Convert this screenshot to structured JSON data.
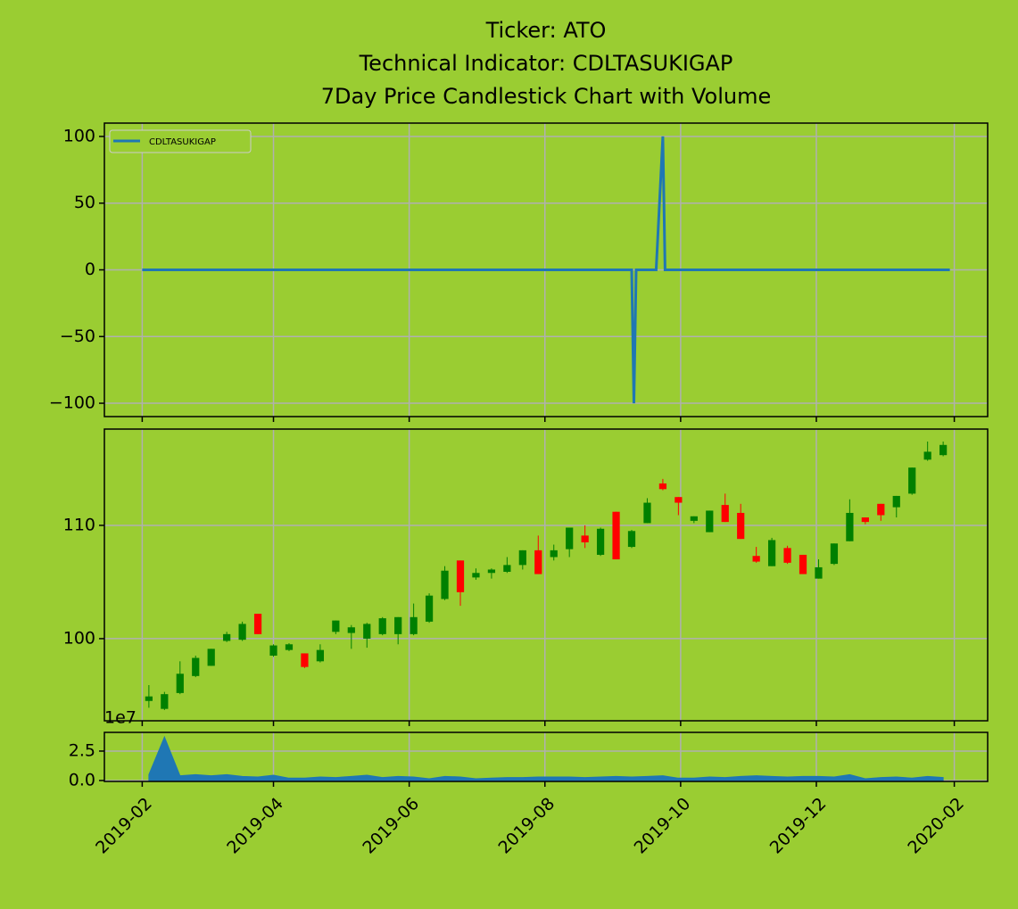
{
  "chart_data": [
    {
      "type": "line",
      "title": [
        "Ticker: ATO",
        "Technical Indicator: CDLTASUKIGAP",
        "7Day Price Candlestick Chart with Volume"
      ],
      "x": [
        "2019-02-01",
        "2019-09-09",
        "2019-09-10",
        "2019-09-11",
        "2019-09-20",
        "2019-09-23",
        "2019-09-24",
        "2020-01-30"
      ],
      "series": [
        {
          "name": "CDLTASUKIGAP",
          "color": "#1f77b4",
          "values": [
            0,
            0,
            -100,
            0,
            0,
            100,
            0,
            0
          ]
        }
      ],
      "ylim": [
        -110,
        110
      ],
      "yticks": [
        {
          "value": -100,
          "label": "−100"
        },
        {
          "value": -50,
          "label": "−50"
        },
        0,
        50,
        100
      ],
      "grid": true,
      "legend": "upper left"
    },
    {
      "type": "candlestick",
      "x": [
        "2019-02-04",
        "2019-02-11",
        "2019-02-18",
        "2019-02-25",
        "2019-03-04",
        "2019-03-11",
        "2019-03-18",
        "2019-03-25",
        "2019-04-01",
        "2019-04-08",
        "2019-04-15",
        "2019-04-22",
        "2019-04-29",
        "2019-05-06",
        "2019-05-13",
        "2019-05-20",
        "2019-05-27",
        "2019-06-03",
        "2019-06-10",
        "2019-06-17",
        "2019-06-24",
        "2019-07-01",
        "2019-07-08",
        "2019-07-15",
        "2019-07-22",
        "2019-07-29",
        "2019-08-05",
        "2019-08-12",
        "2019-08-19",
        "2019-08-26",
        "2019-09-02",
        "2019-09-09",
        "2019-09-16",
        "2019-09-23",
        "2019-09-30",
        "2019-10-07",
        "2019-10-14",
        "2019-10-21",
        "2019-10-28",
        "2019-11-04",
        "2019-11-11",
        "2019-11-18",
        "2019-11-25",
        "2019-12-02",
        "2019-12-09",
        "2019-12-16",
        "2019-12-23",
        "2019-12-30",
        "2020-01-06",
        "2020-01-13",
        "2020-01-20",
        "2020-01-27"
      ],
      "open": [
        94.5,
        93.8,
        95.2,
        96.7,
        97.6,
        99.8,
        99.9,
        102.2,
        98.5,
        99.0,
        98.7,
        98.0,
        100.6,
        100.5,
        100.0,
        100.4,
        100.4,
        100.4,
        101.5,
        103.5,
        106.9,
        105.4,
        105.8,
        105.9,
        106.5,
        107.8,
        107.2,
        107.9,
        109.1,
        107.4,
        111.2,
        108.1,
        110.2,
        113.7,
        112.5,
        110.4,
        109.4,
        111.8,
        111.1,
        107.3,
        106.4,
        108.0,
        107.4,
        105.3,
        106.6,
        108.6,
        110.7,
        111.9,
        111.6,
        112.8,
        115.8,
        116.2
      ],
      "high": [
        95.9,
        95.3,
        98.0,
        98.5,
        99.1,
        100.6,
        101.5,
        102.2,
        99.5,
        99.6,
        98.7,
        99.5,
        101.6,
        101.2,
        101.4,
        101.9,
        101.9,
        103.1,
        104.0,
        106.4,
        106.9,
        106.2,
        106.2,
        107.2,
        107.8,
        109.1,
        108.3,
        109.8,
        110.0,
        109.8,
        111.2,
        109.6,
        112.4,
        114.1,
        112.5,
        110.8,
        111.3,
        112.8,
        111.9,
        108.1,
        108.9,
        108.2,
        107.4,
        107.0,
        108.4,
        112.3,
        110.7,
        111.9,
        112.6,
        115.1,
        117.4,
        117.4
      ],
      "low": [
        93.9,
        93.7,
        95.1,
        96.6,
        97.6,
        99.7,
        99.8,
        100.4,
        98.4,
        98.9,
        97.4,
        97.9,
        100.4,
        99.1,
        99.2,
        100.3,
        99.5,
        100.3,
        101.4,
        103.4,
        102.9,
        105.2,
        105.3,
        105.8,
        106.1,
        105.7,
        106.9,
        107.2,
        108.0,
        107.3,
        107.0,
        108.0,
        110.2,
        113.1,
        110.9,
        110.2,
        109.4,
        110.3,
        108.8,
        106.7,
        106.4,
        106.6,
        105.7,
        105.3,
        106.5,
        108.6,
        110.1,
        110.4,
        110.7,
        112.7,
        115.7,
        116.1
      ],
      "close": [
        94.9,
        95.1,
        96.9,
        98.3,
        99.1,
        100.4,
        101.3,
        100.4,
        99.4,
        99.5,
        97.5,
        99.0,
        101.6,
        101.0,
        101.3,
        101.8,
        101.9,
        101.9,
        103.8,
        106.0,
        104.1,
        105.8,
        106.1,
        106.5,
        107.8,
        105.7,
        107.8,
        109.8,
        108.5,
        109.7,
        107.0,
        109.5,
        112.0,
        113.2,
        112.0,
        110.8,
        111.3,
        110.3,
        108.8,
        106.8,
        108.7,
        106.7,
        105.7,
        106.3,
        108.4,
        111.1,
        110.3,
        110.9,
        112.6,
        115.1,
        116.5,
        117.1
      ],
      "up_color": "#008000",
      "down_color": "#ff0000",
      "ylim": [
        92.75,
        118.5
      ],
      "yticks": [
        100,
        110
      ],
      "grid": true
    },
    {
      "type": "area",
      "x": [
        "2019-02-04",
        "2019-02-11",
        "2019-02-18",
        "2019-02-25",
        "2019-03-04",
        "2019-03-11",
        "2019-03-18",
        "2019-03-25",
        "2019-04-01",
        "2019-04-08",
        "2019-04-15",
        "2019-04-22",
        "2019-04-29",
        "2019-05-06",
        "2019-05-13",
        "2019-05-20",
        "2019-05-27",
        "2019-06-03",
        "2019-06-10",
        "2019-06-17",
        "2019-06-24",
        "2019-07-01",
        "2019-07-08",
        "2019-07-15",
        "2019-07-22",
        "2019-07-29",
        "2019-08-05",
        "2019-08-12",
        "2019-08-19",
        "2019-08-26",
        "2019-09-02",
        "2019-09-09",
        "2019-09-16",
        "2019-09-23",
        "2019-09-30",
        "2019-10-07",
        "2019-10-14",
        "2019-10-21",
        "2019-10-28",
        "2019-11-04",
        "2019-11-11",
        "2019-11-18",
        "2019-11-25",
        "2019-12-02",
        "2019-12-09",
        "2019-12-16",
        "2019-12-23",
        "2019-12-30",
        "2020-01-06",
        "2020-01-13",
        "2020-01-20",
        "2020-01-27"
      ],
      "series": [
        {
          "color": "#1f77b4",
          "values": [
            0.5,
            3.7,
            0.4,
            0.5,
            0.4,
            0.5,
            0.35,
            0.3,
            0.45,
            0.2,
            0.2,
            0.3,
            0.25,
            0.35,
            0.45,
            0.25,
            0.35,
            0.3,
            0.15,
            0.35,
            0.3,
            0.15,
            0.2,
            0.25,
            0.25,
            0.3,
            0.3,
            0.3,
            0.25,
            0.3,
            0.35,
            0.3,
            0.35,
            0.4,
            0.2,
            0.2,
            0.3,
            0.25,
            0.35,
            0.4,
            0.35,
            0.3,
            0.35,
            0.35,
            0.3,
            0.5,
            0.15,
            0.25,
            0.3,
            0.2,
            0.35,
            0.25
          ]
        }
      ],
      "y_offset_label": "1e7",
      "ylim": [
        -0.08,
        4.09
      ],
      "yticks": [
        {
          "value": 0,
          "label": "0.0"
        },
        2.5
      ],
      "grid": true,
      "xlim": [
        "2019-01-15",
        "2020-02-16"
      ],
      "xticks": [
        "2019-02",
        "2019-04",
        "2019-06",
        "2019-08",
        "2019-10",
        "2019-12",
        "2020-02"
      ]
    }
  ]
}
